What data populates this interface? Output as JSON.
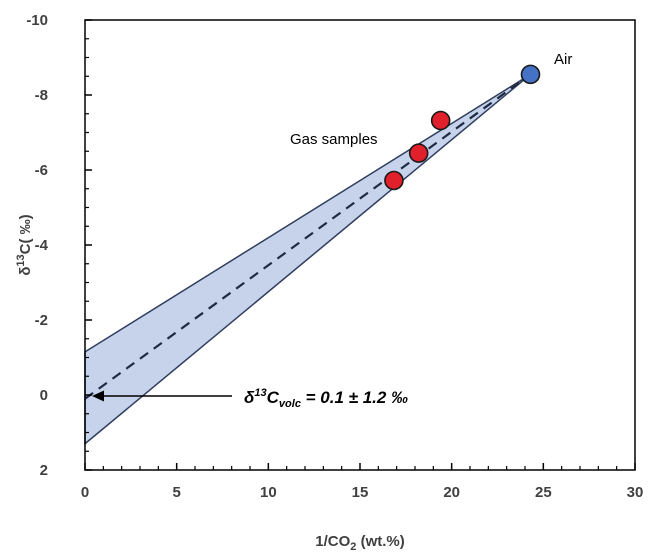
{
  "chart_data": {
    "type": "scatter",
    "x_axis": {
      "range": [
        0,
        30
      ],
      "ticks": [
        0,
        5,
        10,
        15,
        20,
        25,
        30
      ],
      "title_main": "1/CO",
      "title_sub": "2",
      "title_rest": " (wt.%)"
    },
    "y_axis": {
      "range": [
        2,
        -10
      ],
      "reversed": true,
      "ticks": [
        2,
        0,
        -2,
        -4,
        -6,
        -8,
        -10
      ],
      "title_main": "δ",
      "title_sup": "13",
      "title_rest": "C( ‰)"
    },
    "band": {
      "color": "#c7d3ea",
      "edge_color": "#2f3d5e",
      "upper": [
        [
          0,
          -1.15
        ],
        [
          24.3,
          -8.55
        ]
      ],
      "lower": [
        [
          0,
          1.3
        ],
        [
          24.3,
          -8.55
        ]
      ]
    },
    "mixing_line": {
      "points": [
        [
          0,
          0.1
        ],
        [
          24.3,
          -8.55
        ]
      ],
      "style": "dashed"
    },
    "series": [
      {
        "name": "Air",
        "color": "#4472c4",
        "points": [
          {
            "x": 24.3,
            "y": -8.55
          }
        ]
      },
      {
        "name": "Gas samples",
        "color": "#e0202a",
        "points": [
          {
            "x": 16.85,
            "y": -5.72
          },
          {
            "x": 18.2,
            "y": -6.45
          },
          {
            "x": 19.4,
            "y": -7.32
          }
        ]
      }
    ],
    "annotations": {
      "air_label": "Air",
      "gas_label": "Gas samples",
      "formula_delta": "δ",
      "formula_sup": "13",
      "formula_C": "C",
      "formula_sub": "volc",
      "formula_rest": " = 0.1 ± 1.2 ‰"
    }
  }
}
